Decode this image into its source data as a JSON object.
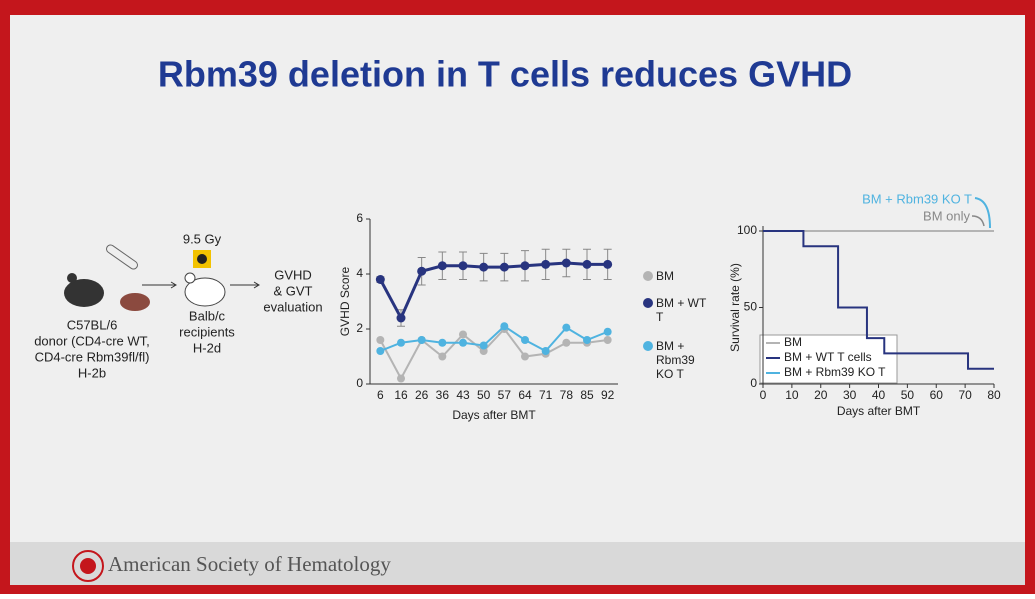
{
  "title": "Rbm39 deletion in T cells reduces GVHD",
  "footer": "American Society of Hematology",
  "diagram": {
    "dose": "9.5 Gy",
    "donor": [
      "C57BL/6",
      "donor (CD4-cre WT,",
      "CD4-cre Rbm39fl/fl)",
      "H-2b"
    ],
    "recipient": [
      "Balb/c",
      "recipients",
      "H-2d"
    ],
    "outcome": [
      "GVHD",
      "& GVT",
      "evaluation"
    ]
  },
  "chart_data": [
    {
      "type": "line",
      "xlabel": "Days after BMT",
      "ylabel": "GVHD Score",
      "categories": [
        "6",
        "16",
        "26",
        "36",
        "43",
        "50",
        "57",
        "64",
        "71",
        "78",
        "85",
        "92"
      ],
      "ylim": [
        0,
        6
      ],
      "yticks": [
        0,
        2,
        4,
        6
      ],
      "series": [
        {
          "name": "BM",
          "color": "#b4b4b4",
          "values": [
            1.6,
            0.2,
            1.6,
            1.0,
            1.8,
            1.2,
            2.0,
            1.0,
            1.1,
            1.5,
            1.5,
            1.6
          ]
        },
        {
          "name": "BM + WT T",
          "color": "#28347f",
          "values": [
            3.8,
            2.4,
            4.1,
            4.3,
            4.3,
            4.25,
            4.25,
            4.3,
            4.35,
            4.4,
            4.35,
            4.35
          ],
          "errors": [
            0.1,
            0.3,
            0.5,
            0.5,
            0.5,
            0.5,
            0.5,
            0.55,
            0.55,
            0.5,
            0.55,
            0.55
          ]
        },
        {
          "name": "BM + Rbm39 KO T",
          "color": "#4fb3e0",
          "values": [
            1.2,
            1.5,
            1.6,
            1.5,
            1.5,
            1.4,
            2.1,
            1.6,
            1.2,
            2.05,
            1.6,
            1.9
          ]
        }
      ]
    },
    {
      "type": "step",
      "xlabel": "Days after BMT",
      "ylabel": "Survival rate (%)",
      "xlim": [
        0,
        80
      ],
      "xticks": [
        0,
        10,
        20,
        30,
        40,
        50,
        60,
        70,
        80
      ],
      "ylim": [
        0,
        100
      ],
      "yticks": [
        0,
        50,
        100
      ],
      "annotations": [
        "BM + Rbm39 KO T",
        "BM only"
      ],
      "series": [
        {
          "name": "BM",
          "color": "#b4b4b4",
          "x": [
            0,
            80
          ],
          "values": [
            100,
            100
          ]
        },
        {
          "name": "BM + WT T cells",
          "color": "#28347f",
          "x": [
            0,
            14,
            26,
            36,
            42,
            71,
            80
          ],
          "values": [
            100,
            90,
            50,
            30,
            20,
            10,
            10
          ]
        },
        {
          "name": "BM + Rbm39 KO T",
          "color": "#4fb3e0",
          "x": [
            0,
            80
          ],
          "values": [
            100,
            100
          ]
        }
      ]
    }
  ]
}
